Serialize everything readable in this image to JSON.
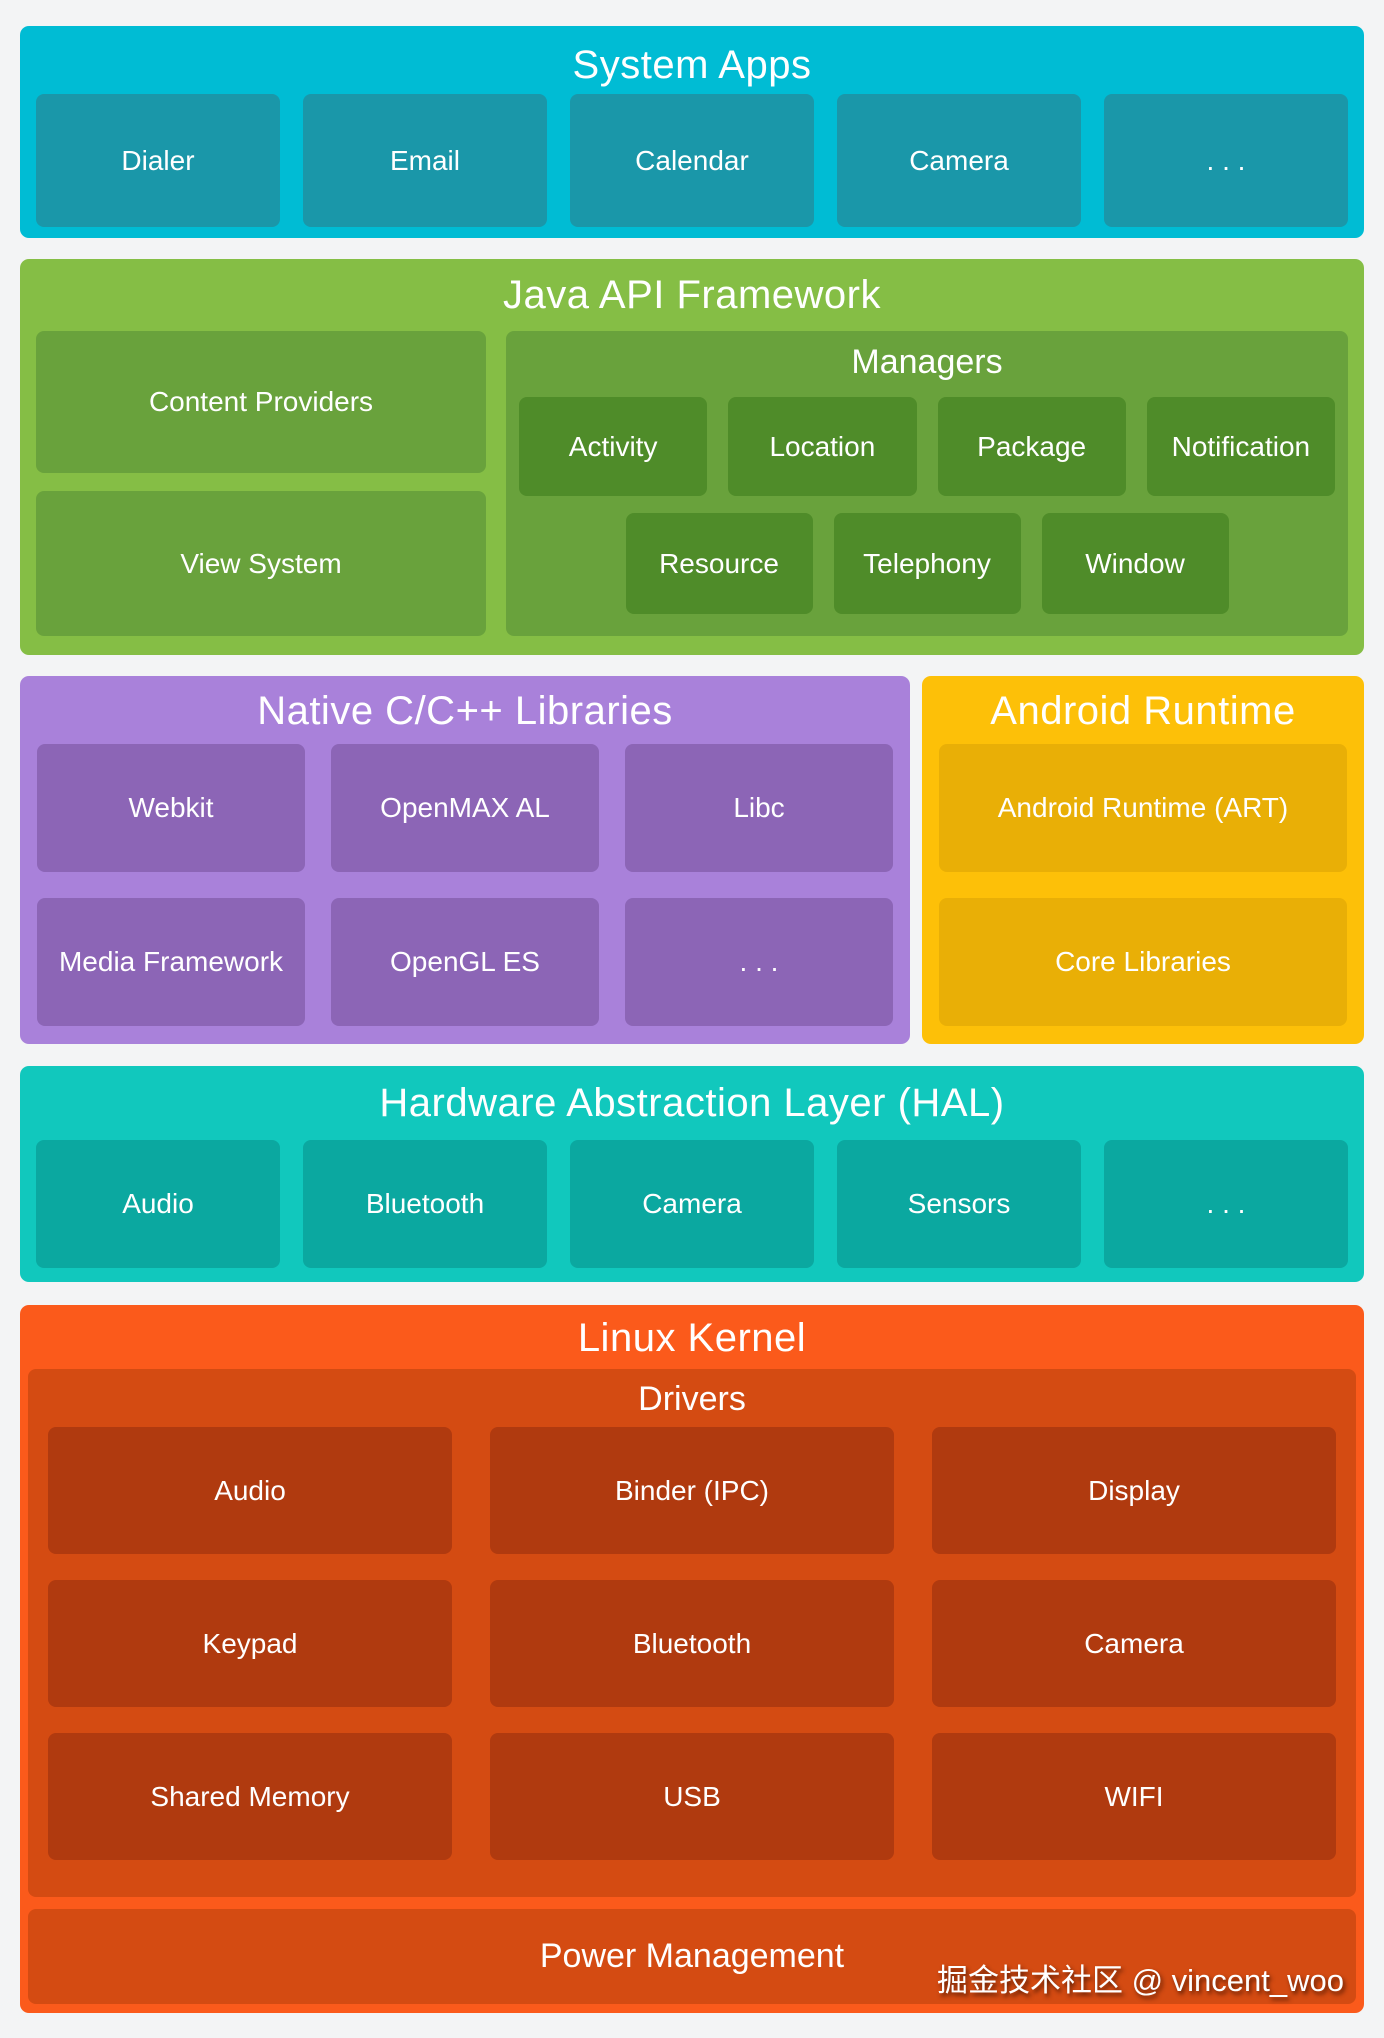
{
  "colors": {
    "bg": "#F3F4F5",
    "text": "#FFFFFF",
    "apps-panel": "#00BCD4",
    "apps-box": "#1A97A9",
    "java-panel": "#85BE45",
    "java-box": "#69A23C",
    "java-inner": "#4F8C29",
    "native-panel": "#A981DA",
    "native-box": "#8C65B6",
    "art-panel": "#FDC008",
    "art-box": "#E9AF06",
    "hal-panel": "#11C8BD",
    "hal-box": "#0BA8A0",
    "kernel-panel": "#FB5A1B",
    "kernel-sub": "#D44B12",
    "kernel-box": "#B03A0F"
  },
  "sections": {
    "system_apps": {
      "title": "System Apps",
      "items": [
        "Dialer",
        "Email",
        "Calendar",
        "Camera",
        ". . ."
      ]
    },
    "java_api": {
      "title": "Java API Framework",
      "left_items": [
        "Content Providers",
        "View System"
      ],
      "managers": {
        "title": "Managers",
        "row1": [
          "Activity",
          "Location",
          "Package",
          "Notification"
        ],
        "row2": [
          "Resource",
          "Telephony",
          "Window"
        ]
      }
    },
    "native_libs": {
      "title": "Native C/C++ Libraries",
      "row1": [
        "Webkit",
        "OpenMAX AL",
        "Libc"
      ],
      "row2": [
        "Media Framework",
        "OpenGL ES",
        ". . ."
      ]
    },
    "android_runtime": {
      "title": "Android Runtime",
      "items": [
        "Android Runtime (ART)",
        "Core Libraries"
      ]
    },
    "hal": {
      "title": "Hardware Abstraction Layer (HAL)",
      "items": [
        "Audio",
        "Bluetooth",
        "Camera",
        "Sensors",
        ". . ."
      ]
    },
    "linux_kernel": {
      "title": "Linux Kernel",
      "drivers": {
        "title": "Drivers",
        "row1": [
          "Audio",
          "Binder (IPC)",
          "Display"
        ],
        "row2": [
          "Keypad",
          "Bluetooth",
          "Camera"
        ],
        "row3": [
          "Shared Memory",
          "USB",
          "WIFI"
        ]
      },
      "power": "Power Management"
    }
  },
  "watermark": "掘金技术社区 @ vincent_woo"
}
